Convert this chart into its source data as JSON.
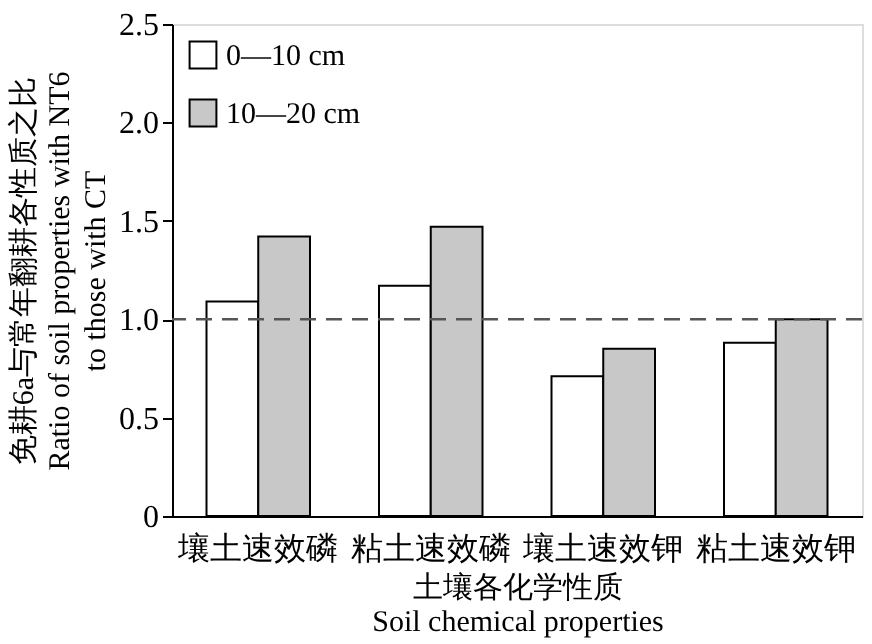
{
  "chart_data": {
    "type": "bar",
    "xlabel": "土壤各化学性质\nSoil chemical  properties",
    "ylabel": "免耕6a与常年翻耕各性质之比\nRatio of soil properties with NT6\nto those with CT",
    "categories": [
      "壤土速效磷",
      "粘土速效磷",
      "壤土速效钾",
      "粘土速效钾"
    ],
    "series": [
      {
        "name": "0—10 cm",
        "color": "#ffffff",
        "values": [
          1.09,
          1.17,
          0.71,
          0.88
        ]
      },
      {
        "name": "10—20 cm",
        "color": "#c8c8c8",
        "values": [
          1.42,
          1.47,
          0.85,
          1.0
        ]
      }
    ],
    "ylim": [
      0,
      2.5
    ],
    "yticks": [
      0,
      {
        "value": 0.5,
        "label": "0.5"
      },
      {
        "value": 1.0,
        "label": "1.0"
      },
      {
        "value": 1.5,
        "label": "1.5"
      },
      {
        "value": 2.0,
        "label": "2.0"
      },
      {
        "value": 2.5,
        "label": "2.5"
      }
    ],
    "ref_lines": [
      {
        "axis": "y",
        "value": 1.0,
        "label": null,
        "color": "#555555",
        "line_style": "dashed"
      }
    ],
    "grid": false,
    "legend": "top left"
  }
}
